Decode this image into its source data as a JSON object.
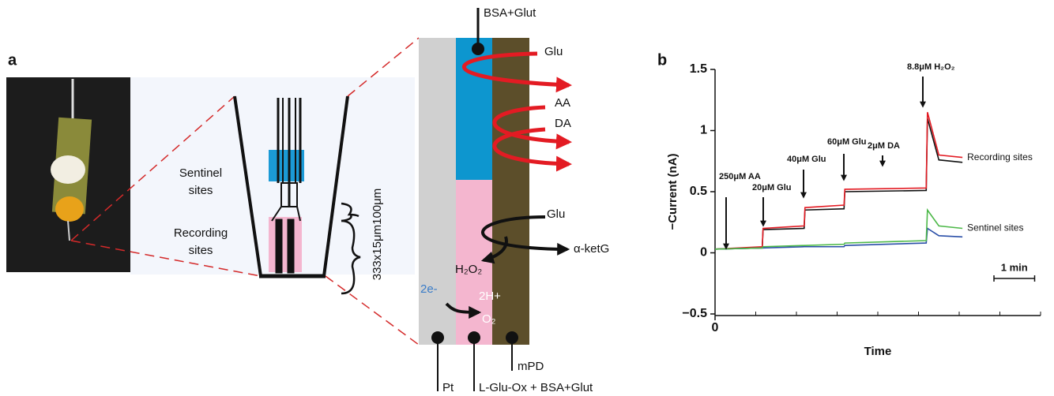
{
  "figure": {
    "panel_a": {
      "letter": "a",
      "sentinel": [
        "Sentinel",
        "sites"
      ],
      "recording": [
        "Recording",
        "sites"
      ],
      "dimensions": "333x15μm100μm",
      "top_label": "BSA+Glut",
      "glu_top": "Glu",
      "aa": "AA",
      "da": "DA",
      "glu_bottom": "Glu",
      "ketg": "α-ketG",
      "h2o2": "H₂O₂",
      "electrons": "2e-",
      "protons": "2H+",
      "o2": "O₂",
      "pt": "Pt",
      "enzyme": "L-Glu-Ox + BSA+Glut",
      "mpd": "mPD"
    },
    "panel_b_letter": "b"
  },
  "chart_data": {
    "type": "line",
    "y_label": "−Current (nA)",
    "x_label": "Time",
    "xlim": [
      0,
      8
    ],
    "xticks": [
      0
    ],
    "x_minor_ticks": [
      1,
      2,
      3,
      4,
      5,
      6,
      7,
      8
    ],
    "ylim": [
      -0.5,
      1.5
    ],
    "yticks": [
      {
        "value": -0.5,
        "label": "−0.5"
      },
      0,
      0.5,
      1,
      1.5
    ],
    "x": [
      0,
      1.16,
      1.18,
      2.19,
      2.21,
      3.17,
      3.19,
      5.19,
      5.22,
      5.5,
      6.08
    ],
    "series": [
      {
        "name": "Recording sites",
        "traces": [
          {
            "color": "#111111",
            "values": [
              0.03,
              0.04,
              0.19,
              0.2,
              0.35,
              0.36,
              0.5,
              0.51,
              1.1,
              0.76,
              0.74
            ]
          },
          {
            "color": "#e31b23",
            "values": [
              0.03,
              0.05,
              0.2,
              0.22,
              0.37,
              0.39,
              0.52,
              0.53,
              1.15,
              0.8,
              0.78
            ]
          }
        ]
      },
      {
        "name": "Sentinel sites",
        "traces": [
          {
            "color": "#2a4fa8",
            "values": [
              0.03,
              0.04,
              0.04,
              0.05,
              0.05,
              0.05,
              0.06,
              0.08,
              0.2,
              0.14,
              0.13
            ]
          },
          {
            "color": "#4cb848",
            "values": [
              0.03,
              0.04,
              0.05,
              0.06,
              0.06,
              0.07,
              0.08,
              0.1,
              0.35,
              0.22,
              0.2
            ]
          }
        ]
      }
    ],
    "annotations": [
      "250μM AA",
      "20μM Glu",
      "40μM Glu",
      "60μM Glu",
      "2μM DA",
      "8.8μM H₂O₂"
    ],
    "scale_bar": {
      "value": 1,
      "label": "1 min"
    }
  }
}
